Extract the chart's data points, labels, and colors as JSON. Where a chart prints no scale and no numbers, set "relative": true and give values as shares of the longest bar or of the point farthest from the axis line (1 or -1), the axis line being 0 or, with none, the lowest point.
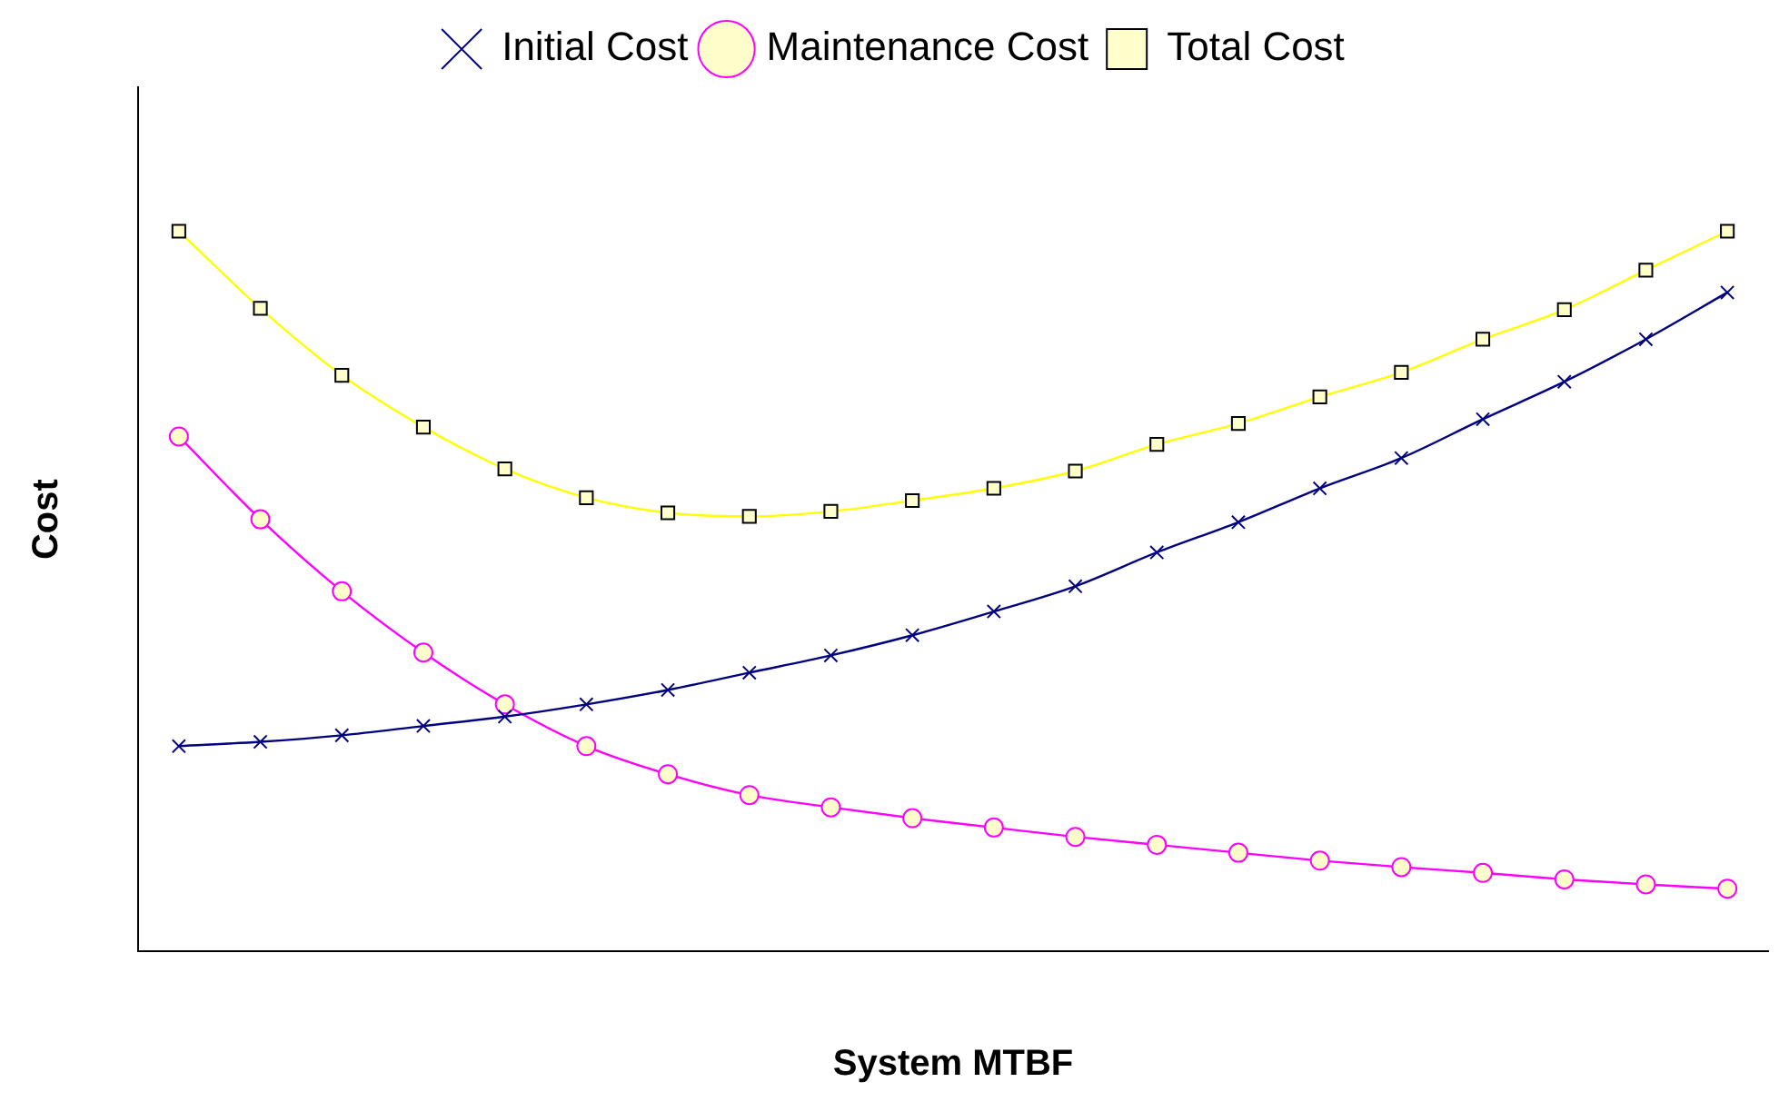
{
  "chart_data": {
    "type": "line",
    "relative": true,
    "xlabel": "System MTBF",
    "ylabel": "Cost",
    "legend": "top",
    "grid": false,
    "categories": [
      null,
      null,
      null,
      null,
      null,
      null,
      null,
      null,
      null,
      null,
      null,
      null,
      null,
      null,
      null,
      null,
      null,
      null,
      null,
      null
    ],
    "series": [
      {
        "name": "Initial Cost",
        "color": "#000080",
        "marker": "cross",
        "values": [
          0.285,
          0.291,
          0.3,
          0.313,
          0.326,
          0.343,
          0.363,
          0.387,
          0.411,
          0.439,
          0.472,
          0.507,
          0.554,
          0.596,
          0.643,
          0.685,
          0.739,
          0.791,
          0.85,
          0.915
        ]
      },
      {
        "name": "Maintenance Cost",
        "color": "#ff00ff",
        "marker": "circle",
        "values": [
          0.715,
          0.6,
          0.5,
          0.415,
          0.343,
          0.285,
          0.246,
          0.217,
          0.2,
          0.185,
          0.172,
          0.159,
          0.148,
          0.137,
          0.126,
          0.117,
          0.109,
          0.1,
          0.093,
          0.087
        ]
      },
      {
        "name": "Total Cost",
        "color": "#ffff00",
        "marker": "square",
        "values": [
          1,
          0.893,
          0.8,
          0.728,
          0.67,
          0.63,
          0.609,
          0.604,
          0.611,
          0.626,
          0.643,
          0.667,
          0.704,
          0.733,
          0.77,
          0.804,
          0.85,
          0.891,
          0.946,
          1
        ]
      }
    ]
  }
}
